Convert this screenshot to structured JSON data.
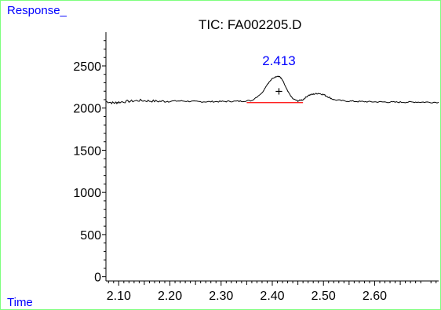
{
  "colors": {
    "frame": "#7fff7f",
    "axis_labels": "#0000ff",
    "trace": "#000000",
    "baseline": "#ff0000",
    "peak_label": "#0000ff"
  },
  "chart_data": {
    "type": "line",
    "title": "TIC: FA002205.D",
    "ylabel": "Response_",
    "xlabel": "Time",
    "xlim": [
      2.075,
      2.725
    ],
    "ylim": [
      -50,
      2900
    ],
    "xticks": [
      2.1,
      2.2,
      2.3,
      2.4,
      2.5,
      2.6
    ],
    "xtick_labels": [
      "2.10",
      "2.20",
      "2.30",
      "2.40",
      "2.50",
      "2.60"
    ],
    "yticks": [
      0,
      500,
      1000,
      1500,
      2000,
      2500
    ],
    "ytick_labels": [
      "0",
      "500",
      "1000",
      "1500",
      "2000",
      "2500"
    ],
    "grid": false,
    "series": [
      {
        "x": [
          2.075,
          2.09,
          2.1,
          2.12,
          2.14,
          2.16,
          2.18,
          2.2,
          2.22,
          2.24,
          2.26,
          2.28,
          2.3,
          2.32,
          2.34,
          2.36,
          2.38,
          2.39,
          2.4,
          2.41,
          2.415,
          2.42,
          2.43,
          2.44,
          2.45,
          2.46,
          2.47,
          2.48,
          2.49,
          2.5,
          2.51,
          2.52,
          2.54,
          2.56,
          2.58,
          2.6,
          2.62,
          2.64,
          2.66,
          2.68,
          2.7,
          2.725
        ],
        "y": [
          2080,
          2060,
          2070,
          2080,
          2090,
          2085,
          2080,
          2082,
          2085,
          2080,
          2075,
          2076,
          2078,
          2080,
          2082,
          2090,
          2180,
          2280,
          2350,
          2380,
          2370,
          2330,
          2200,
          2110,
          2085,
          2100,
          2150,
          2165,
          2175,
          2160,
          2130,
          2100,
          2085,
          2080,
          2076,
          2074,
          2072,
          2070,
          2070,
          2072,
          2070,
          2068
        ]
      }
    ],
    "annotations": [
      {
        "type": "peak_label",
        "text": "2.413",
        "x": 2.413,
        "y": 2380
      },
      {
        "type": "baseline",
        "x_start": 2.35,
        "x_end": 2.46,
        "y_start": 2065,
        "y_end": 2065
      },
      {
        "type": "peak_apex_marker",
        "text": "+",
        "x": 2.413,
        "y": 2200
      }
    ]
  }
}
